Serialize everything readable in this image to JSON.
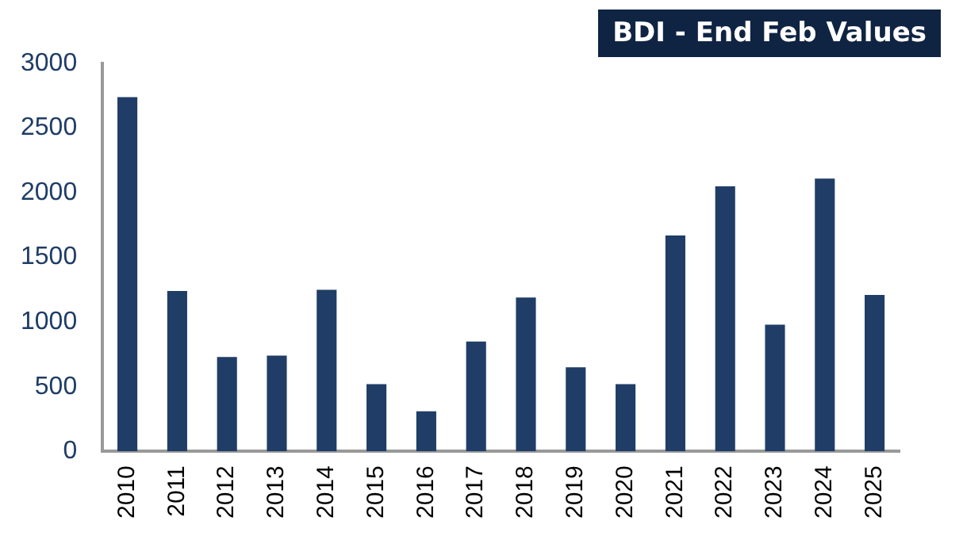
{
  "chart_data": {
    "type": "bar",
    "title": "BDI - End Feb Values",
    "categories": [
      "2010",
      "2011",
      "2012",
      "2013",
      "2014",
      "2015",
      "2016",
      "2017",
      "2018",
      "2019",
      "2020",
      "2021",
      "2022",
      "2023",
      "2024",
      "2025"
    ],
    "values": [
      2740,
      1240,
      730,
      740,
      1250,
      520,
      310,
      850,
      1190,
      650,
      520,
      1670,
      2050,
      980,
      2110,
      1210
    ],
    "color": "#1f3d66",
    "ylim": [
      0,
      3000
    ],
    "yticks": [
      0,
      500,
      1000,
      1500,
      2000,
      2500,
      3000
    ],
    "grid": false
  }
}
